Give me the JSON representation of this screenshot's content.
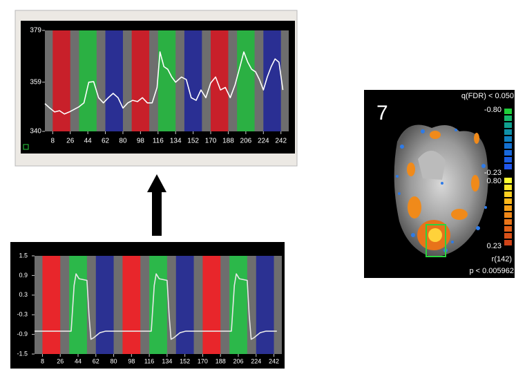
{
  "chart_data": [
    {
      "type": "line",
      "xlim": [
        0,
        250
      ],
      "ylim": [
        340,
        379
      ],
      "xticks": [
        8,
        26,
        44,
        62,
        80,
        98,
        116,
        134,
        152,
        170,
        188,
        206,
        224,
        242
      ],
      "yticks": [
        340,
        359,
        379
      ],
      "blocks": [
        {
          "start": 8,
          "end": 26,
          "color": "#c8202a"
        },
        {
          "start": 35,
          "end": 53,
          "color": "#2bb043"
        },
        {
          "start": 62,
          "end": 80,
          "color": "#2a2f93"
        },
        {
          "start": 89,
          "end": 107,
          "color": "#c8202a"
        },
        {
          "start": 116,
          "end": 134,
          "color": "#2bb043"
        },
        {
          "start": 143,
          "end": 161,
          "color": "#2a2f93"
        },
        {
          "start": 170,
          "end": 188,
          "color": "#c8202a"
        },
        {
          "start": 197,
          "end": 215,
          "color": "#2bb043"
        },
        {
          "start": 224,
          "end": 242,
          "color": "#2a2f93"
        }
      ],
      "x": [
        0,
        5,
        10,
        15,
        20,
        25,
        30,
        35,
        40,
        45,
        50,
        55,
        60,
        65,
        70,
        75,
        80,
        85,
        90,
        95,
        100,
        105,
        110,
        115,
        118,
        122,
        126,
        130,
        134,
        140,
        145,
        150,
        155,
        160,
        165,
        170,
        175,
        180,
        185,
        190,
        195,
        200,
        204,
        208,
        212,
        216,
        220,
        224,
        228,
        232,
        236,
        240,
        244
      ],
      "series": [
        {
          "color": "#ffffff",
          "values": [
            350.7,
            349,
            347.5,
            348,
            346.7,
            347.5,
            348.5,
            349.5,
            351,
            359,
            359.2,
            353,
            351,
            353,
            354.7,
            353,
            349,
            351,
            352,
            351.5,
            353,
            351,
            351,
            357,
            370.7,
            365,
            364,
            361,
            359,
            361,
            360,
            353,
            352,
            356,
            353,
            358.7,
            361,
            356,
            357,
            353,
            358,
            365,
            370.7,
            366.7,
            364,
            363,
            360,
            356,
            361,
            365,
            368,
            366.7,
            356
          ]
        }
      ]
    },
    {
      "type": "line",
      "xlim": [
        0,
        250
      ],
      "ylim": [
        -1.5,
        1.5
      ],
      "xticks": [
        8,
        26,
        44,
        62,
        80,
        98,
        116,
        134,
        152,
        170,
        188,
        206,
        224,
        242
      ],
      "yticks": [
        -1.5,
        -0.9,
        -0.3,
        0.3,
        0.9,
        1.5
      ],
      "blocks": [
        {
          "start": 8,
          "end": 26,
          "color": "#e8262b"
        },
        {
          "start": 35,
          "end": 53,
          "color": "#2cb84a"
        },
        {
          "start": 62,
          "end": 80,
          "color": "#2b3192"
        },
        {
          "start": 89,
          "end": 107,
          "color": "#e8262b"
        },
        {
          "start": 116,
          "end": 134,
          "color": "#2cb84a"
        },
        {
          "start": 143,
          "end": 161,
          "color": "#2b3192"
        },
        {
          "start": 170,
          "end": 188,
          "color": "#e8262b"
        },
        {
          "start": 197,
          "end": 215,
          "color": "#2cb84a"
        },
        {
          "start": 224,
          "end": 242,
          "color": "#2b3192"
        }
      ],
      "x": [
        0,
        37,
        40,
        42,
        45,
        53,
        55,
        57,
        60,
        66,
        72,
        118,
        121,
        123,
        126,
        134,
        136,
        138,
        141,
        147,
        153,
        199,
        202,
        204,
        207,
        215,
        217,
        219,
        222,
        228,
        234,
        245
      ],
      "series": [
        {
          "color": "#e8e8e8",
          "values": [
            -0.8,
            -0.8,
            0.6,
            0.95,
            0.8,
            0.75,
            -0.3,
            -1.05,
            -1.0,
            -0.85,
            -0.8,
            -0.8,
            0.6,
            0.95,
            0.8,
            0.75,
            -0.3,
            -1.05,
            -1.0,
            -0.85,
            -0.8,
            -0.8,
            0.6,
            0.95,
            0.8,
            0.75,
            -0.3,
            -1.05,
            -1.0,
            -0.85,
            -0.8,
            -0.8
          ]
        }
      ]
    }
  ],
  "brain_map": {
    "slice": "7",
    "threshold": "q(FDR) < 0.050",
    "neg_max": "-0.80",
    "neg_min": "-0.23",
    "pos_max": "0.80",
    "pos_min": "0.23",
    "stat": "r(142)",
    "p_value": "p < 0.005962"
  }
}
